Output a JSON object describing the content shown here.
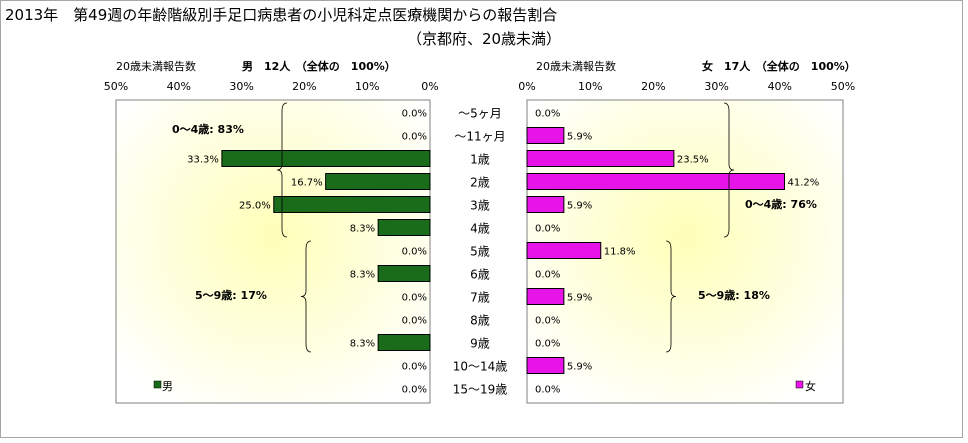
{
  "title_line1": "2013年　第49週の年齢階級別手足口病患者の小児科定点医療機関からの報告割合",
  "title_line2": "（京都府、20歳未満）",
  "colors": {
    "male_bar": "#1a6b1a",
    "female_bar": "#e614e6",
    "plot_gradient_outer": "#ffffff",
    "plot_gradient_center": "#ffffb8"
  },
  "chart_data": [
    {
      "type": "bar",
      "orientation": "horizontal",
      "direction": "right-to-left",
      "header_label": "20歳未満報告数",
      "header_sub": "男　12人　（全体の　100%）",
      "x_ticks": [
        "50%",
        "40%",
        "30%",
        "20%",
        "10%",
        "0%"
      ],
      "xlim": [
        0,
        50
      ],
      "categories": [
        "～5ヶ月",
        "～11ヶ月",
        "1歳",
        "2歳",
        "3歳",
        "4歳",
        "5歳",
        "6歳",
        "7歳",
        "8歳",
        "9歳",
        "10～14歳",
        "15～19歳"
      ],
      "series": [
        {
          "name": "男",
          "values": [
            0.0,
            0.0,
            33.3,
            16.7,
            25.0,
            8.3,
            0.0,
            8.3,
            0.0,
            0.0,
            8.3,
            0.0,
            0.0
          ],
          "labels": [
            "0.0%",
            "0.0%",
            "33.3%",
            "16.7%",
            "25.0%",
            "8.3%",
            "0.0%",
            "8.3%",
            "0.0%",
            "0.0%",
            "8.3%",
            "0.0%",
            "0.0%"
          ]
        }
      ],
      "annotations": [
        {
          "text": "0～4歳: 83%",
          "from": "～5ヶ月",
          "to": "4歳"
        },
        {
          "text": "5～9歳: 17%",
          "from": "5歳",
          "to": "9歳"
        }
      ],
      "legend": "bottom-left",
      "grid": false
    },
    {
      "type": "bar",
      "orientation": "horizontal",
      "direction": "left-to-right",
      "header_label": "20歳未満報告数",
      "header_sub": "女　17人　（全体の　100%）",
      "x_ticks": [
        "0%",
        "10%",
        "20%",
        "30%",
        "40%",
        "50%"
      ],
      "xlim": [
        0,
        50
      ],
      "categories": [
        "～5ヶ月",
        "～11ヶ月",
        "1歳",
        "2歳",
        "3歳",
        "4歳",
        "5歳",
        "6歳",
        "7歳",
        "8歳",
        "9歳",
        "10～14歳",
        "15～19歳"
      ],
      "series": [
        {
          "name": "女",
          "values": [
            0.0,
            5.9,
            23.5,
            41.2,
            5.9,
            0.0,
            11.8,
            0.0,
            5.9,
            0.0,
            0.0,
            5.9,
            0.0
          ],
          "labels": [
            "0.0%",
            "5.9%",
            "23.5%",
            "41.2%",
            "5.9%",
            "0.0%",
            "11.8%",
            "0.0%",
            "5.9%",
            "0.0%",
            "0.0%",
            "5.9%",
            "0.0%"
          ]
        }
      ],
      "annotations": [
        {
          "text": "0～4歳: 76%",
          "from": "～5ヶ月",
          "to": "4歳"
        },
        {
          "text": "5～9歳: 18%",
          "from": "5歳",
          "to": "9歳"
        }
      ],
      "legend": "bottom-right",
      "grid": false
    }
  ]
}
